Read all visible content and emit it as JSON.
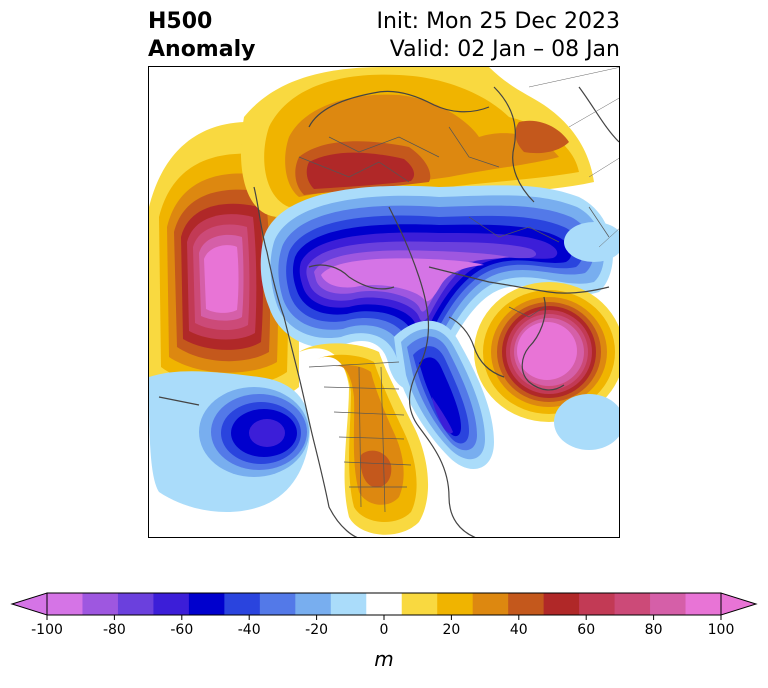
{
  "title": {
    "left_line1": "H500",
    "left_line2": "Anomaly",
    "right_line1": "Init: Mon 25 Dec 2023",
    "right_line2": "Valid: 02 Jan – 08 Jan"
  },
  "colorbar": {
    "unit_label": "m",
    "ticks": [
      "-100",
      "-80",
      "-60",
      "-40",
      "-20",
      "0",
      "20",
      "40",
      "60",
      "80",
      "100"
    ],
    "min": -100,
    "max": 100,
    "step": 10,
    "extend": "both",
    "colors": [
      "#d574e6",
      "#9e57e0",
      "#6b40dd",
      "#3c1ed8",
      "#0000cd",
      "#2a44de",
      "#5379e8",
      "#78aeef",
      "#aadcfa",
      "#ffffff",
      "#f9d940",
      "#f0b400",
      "#dd8810",
      "#c4581c",
      "#b02828",
      "#c23a55",
      "#cc4a78",
      "#d55fa8",
      "#e874d6"
    ],
    "under_color": "#d574e6",
    "over_color": "#e874d6"
  },
  "map": {
    "projection": "north-polar-stereographic",
    "features": [
      "coastlines",
      "country-borders",
      "state-borders"
    ],
    "anomalies": [
      {
        "name": "north-pacific-ridge",
        "sign": "positive",
        "peak_m": 100
      },
      {
        "name": "canada-trough",
        "sign": "negative",
        "peak_m": -100
      },
      {
        "name": "northern-europe-ridge",
        "sign": "positive",
        "peak_m": 100
      },
      {
        "name": "siberia-ridge",
        "sign": "positive",
        "peak_m": 60
      },
      {
        "name": "eastern-us-trough",
        "sign": "negative",
        "peak_m": -60
      },
      {
        "name": "subtropical-pacific-trough",
        "sign": "negative",
        "peak_m": -60
      },
      {
        "name": "southern-us-ridge",
        "sign": "positive",
        "peak_m": 50
      }
    ]
  }
}
